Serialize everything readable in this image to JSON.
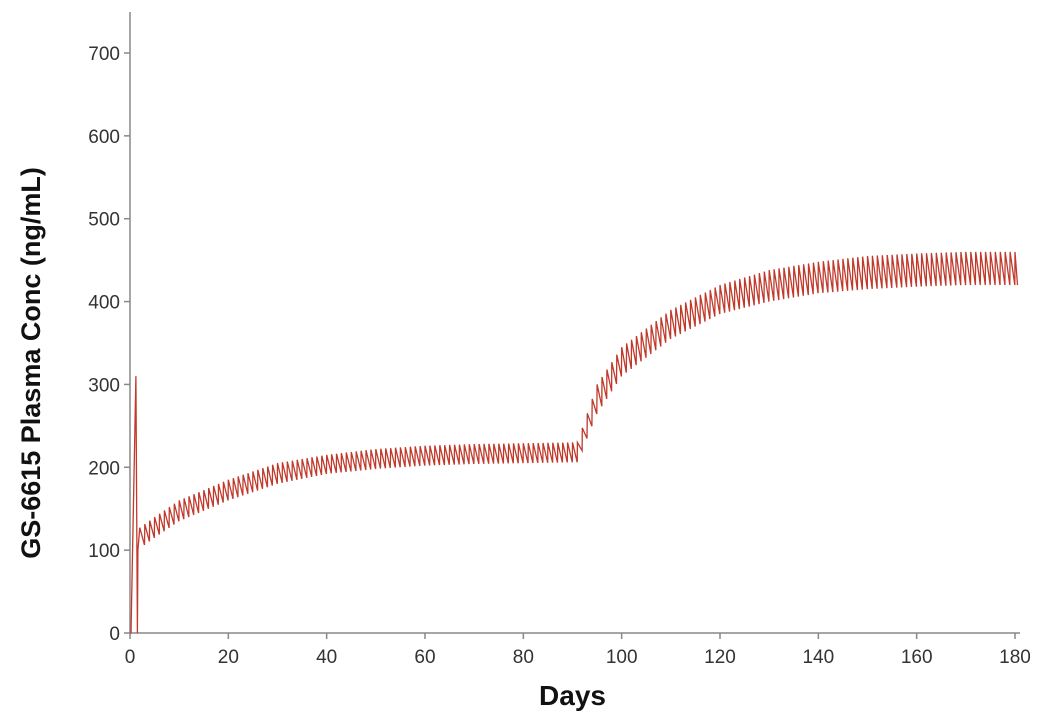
{
  "chart_data": {
    "type": "line",
    "title": "",
    "xlabel": "Days",
    "ylabel": "GS-6615 Plasma Conc (ng/mL)",
    "xlim": [
      0,
      180
    ],
    "ylim": [
      0,
      700
    ],
    "x_ticks": [
      0,
      20,
      40,
      60,
      80,
      100,
      120,
      140,
      160,
      180
    ],
    "y_ticks": [
      0,
      100,
      200,
      300,
      400,
      500,
      600,
      700
    ],
    "grid": false,
    "legend": "none",
    "dosing_interval_days": 1,
    "series": [
      {
        "color": "#c0392b",
        "description_points": {
          "x": [
            0,
            1,
            1.5,
            5,
            10,
            20,
            30,
            40,
            50,
            60,
            70,
            80,
            90,
            91,
            95,
            100,
            110,
            120,
            130,
            140,
            150,
            160,
            170,
            180
          ],
          "trough": [
            0,
            100,
            100,
            115,
            135,
            160,
            180,
            192,
            198,
            202,
            204,
            205,
            206,
            206,
            265,
            310,
            355,
            385,
            400,
            410,
            415,
            418,
            420,
            420
          ],
          "peak": [
            0,
            310,
            125,
            140,
            160,
            185,
            205,
            215,
            222,
            226,
            228,
            229,
            230,
            230,
            300,
            345,
            390,
            420,
            438,
            448,
            455,
            458,
            460,
            460
          ]
        }
      }
    ]
  }
}
